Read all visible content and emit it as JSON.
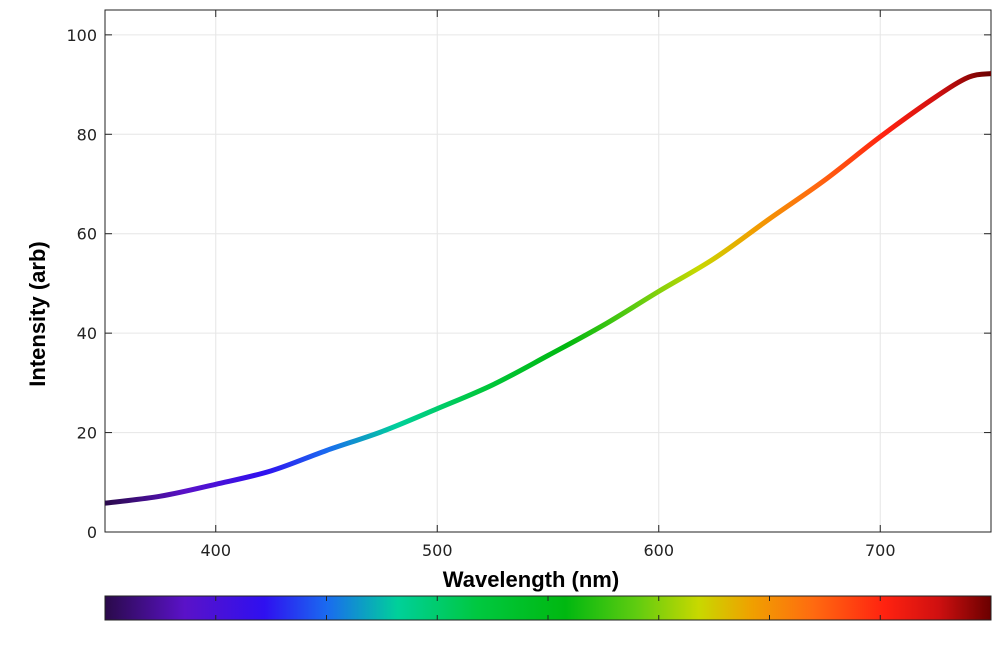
{
  "chart_data": {
    "type": "line",
    "title": "",
    "xlabel": "Wavelength (nm)",
    "ylabel": "Intensity (arb)",
    "xlim": [
      350,
      750
    ],
    "ylim": [
      0,
      105
    ],
    "x_ticks": [
      400,
      500,
      600,
      700
    ],
    "y_ticks": [
      0,
      20,
      40,
      60,
      80,
      100
    ],
    "grid": true,
    "legend": "none",
    "colorbar": "spectrum, bottom",
    "series": [
      {
        "x": [
          350,
          375,
          400,
          425,
          450,
          475,
          500,
          525,
          550,
          575,
          600,
          625,
          650,
          675,
          700,
          725,
          740,
          750
        ],
        "y": [
          5.8,
          7.2,
          9.6,
          12.3,
          16.4,
          20.2,
          24.8,
          29.6,
          35.5,
          41.6,
          48.4,
          55.0,
          63.0,
          70.8,
          79.5,
          87.5,
          91.5,
          92.2
        ],
        "color": "spectral"
      }
    ]
  }
}
